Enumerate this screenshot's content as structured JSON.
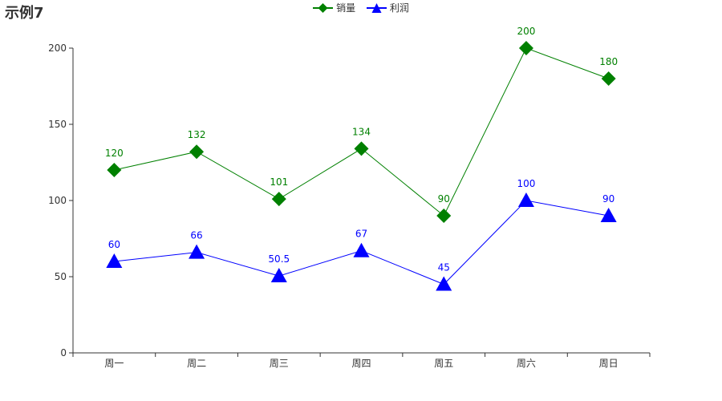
{
  "title": "示例7",
  "legend": [
    {
      "name": "销量",
      "color": "#008000",
      "icon": "diamond-icon"
    },
    {
      "name": "利润",
      "color": "#0000ff",
      "icon": "triangle-icon"
    }
  ],
  "chart_data": {
    "type": "line",
    "title": "示例7",
    "xlabel": "",
    "ylabel": "",
    "categories": [
      "周一",
      "周二",
      "周三",
      "周四",
      "周五",
      "周六",
      "周日"
    ],
    "ylim": [
      0,
      200
    ],
    "yticks": [
      "0",
      "50",
      "100",
      "150",
      "200"
    ],
    "grid": false,
    "legend_position": "top-center",
    "series": [
      {
        "name": "销量",
        "color": "#008000",
        "symbol": "diamond",
        "values": [
          120,
          132,
          101,
          134,
          90,
          200,
          180
        ],
        "labels": [
          "120",
          "132",
          "101",
          "134",
          "90",
          "200",
          "180"
        ]
      },
      {
        "name": "利润",
        "color": "#0000ff",
        "symbol": "triangle",
        "values": [
          60,
          66,
          50.5,
          67,
          45,
          100,
          90
        ],
        "labels": [
          "60",
          "66",
          "50.5",
          "67",
          "45",
          "100",
          "90"
        ]
      }
    ]
  }
}
